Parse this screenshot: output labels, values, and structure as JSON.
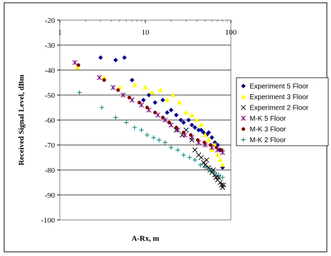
{
  "chart_data": {
    "type": "scatter",
    "title": "",
    "xlabel": "A-Rx, m",
    "ylabel": "Received Signal Level, dBm",
    "x_scale": "log",
    "xlim": [
      1,
      100
    ],
    "ylim": [
      -100,
      -20
    ],
    "x_ticks": [
      1,
      10,
      100
    ],
    "x_tick_labels": [
      "1",
      "10",
      "100"
    ],
    "y_ticks": [
      -20,
      -30,
      -40,
      -50,
      -60,
      -70,
      -80,
      -90,
      -100
    ],
    "y_tick_labels": [
      "-20",
      "-30",
      "-40",
      "-50",
      "-60",
      "-70",
      "-80",
      "-90",
      "-100"
    ],
    "x_axis_position": "top",
    "grid": "horizontal",
    "legend_position": "right",
    "series": [
      {
        "name": "Experiment 5 Floor",
        "marker": "diamond",
        "color": "#00008b",
        "points": [
          [
            3.0,
            -35
          ],
          [
            4.5,
            -36
          ],
          [
            5.7,
            -35
          ],
          [
            7.0,
            -44
          ],
          [
            9.5,
            -52
          ],
          [
            11,
            -50
          ],
          [
            13,
            -53
          ],
          [
            16,
            -52
          ],
          [
            18,
            -57
          ],
          [
            20,
            -56
          ],
          [
            23,
            -58
          ],
          [
            26,
            -60
          ],
          [
            28,
            -61
          ],
          [
            32,
            -60
          ],
          [
            35,
            -62
          ],
          [
            38,
            -63
          ],
          [
            42,
            -64
          ],
          [
            45,
            -64
          ],
          [
            48,
            -65
          ],
          [
            52,
            -66
          ],
          [
            55,
            -65
          ],
          [
            60,
            -67
          ],
          [
            65,
            -69
          ],
          [
            70,
            -70
          ],
          [
            75,
            -72
          ],
          [
            80,
            -79
          ]
        ]
      },
      {
        "name": "Experiment 3 Floor",
        "marker": "triangle",
        "color": "#ffff00",
        "points": [
          [
            1.6,
            -39
          ],
          [
            3.3,
            -43
          ],
          [
            5.0,
            -47
          ],
          [
            7.5,
            -46
          ],
          [
            10,
            -47
          ],
          [
            12,
            -49
          ],
          [
            15,
            -48
          ],
          [
            18,
            -52
          ],
          [
            21,
            -50
          ],
          [
            25,
            -53
          ],
          [
            30,
            -57
          ],
          [
            35,
            -58
          ],
          [
            40,
            -60
          ],
          [
            45,
            -62
          ],
          [
            50,
            -66
          ],
          [
            55,
            -68
          ],
          [
            60,
            -72
          ],
          [
            65,
            -70
          ],
          [
            70,
            -74
          ],
          [
            75,
            -76
          ],
          [
            80,
            -78
          ]
        ]
      },
      {
        "name": "Experiment 2 Floor",
        "marker": "x",
        "color": "#000000",
        "points": [
          [
            23,
            -64
          ],
          [
            27,
            -66
          ],
          [
            30,
            -64
          ],
          [
            35,
            -68
          ],
          [
            38,
            -72
          ],
          [
            42,
            -74
          ],
          [
            45,
            -75
          ],
          [
            48,
            -77
          ],
          [
            50,
            -78
          ],
          [
            52,
            -76
          ],
          [
            55,
            -79
          ],
          [
            57,
            -80
          ],
          [
            60,
            -81
          ],
          [
            62,
            -80
          ],
          [
            65,
            -82
          ],
          [
            67,
            -83
          ],
          [
            70,
            -84
          ],
          [
            72,
            -83
          ],
          [
            75,
            -85
          ],
          [
            78,
            -86
          ],
          [
            80,
            -87
          ],
          [
            82,
            -86
          ]
        ]
      },
      {
        "name": "M-K 5 Floor",
        "marker": "star",
        "color": "#800080",
        "points": [
          [
            1.5,
            -37
          ],
          [
            2.9,
            -43
          ],
          [
            4.2,
            -47
          ],
          [
            5.5,
            -50
          ],
          [
            7,
            -52
          ],
          [
            9,
            -54
          ],
          [
            11,
            -56
          ],
          [
            14,
            -58
          ],
          [
            17,
            -60
          ],
          [
            20,
            -62
          ],
          [
            24,
            -64
          ],
          [
            29,
            -66
          ],
          [
            35,
            -67
          ],
          [
            42,
            -69
          ],
          [
            50,
            -70
          ],
          [
            60,
            -71
          ],
          [
            70,
            -72
          ],
          [
            80,
            -73
          ]
        ]
      },
      {
        "name": "M-K 3 Floor",
        "marker": "circle",
        "color": "#800000",
        "points": [
          [
            1.65,
            -38
          ],
          [
            3.3,
            -44
          ],
          [
            4.8,
            -48
          ],
          [
            6.5,
            -51
          ],
          [
            8.5,
            -53
          ],
          [
            10.5,
            -55
          ],
          [
            13,
            -57
          ],
          [
            16,
            -59
          ],
          [
            19,
            -61
          ],
          [
            23,
            -63
          ],
          [
            28,
            -65
          ],
          [
            34,
            -66
          ],
          [
            41,
            -68
          ],
          [
            49,
            -69
          ],
          [
            58,
            -70
          ],
          [
            68,
            -71
          ],
          [
            78,
            -72
          ]
        ]
      },
      {
        "name": "M-K 2 Floor",
        "marker": "plus",
        "color": "#008080",
        "points": [
          [
            1.7,
            -49
          ],
          [
            3.1,
            -55
          ],
          [
            4.5,
            -59
          ],
          [
            6.0,
            -61
          ],
          [
            7.5,
            -63
          ],
          [
            9,
            -64
          ],
          [
            10.5,
            -66
          ],
          [
            12.5,
            -67
          ],
          [
            14.5,
            -68
          ],
          [
            17,
            -69
          ],
          [
            20,
            -71
          ],
          [
            24,
            -72
          ],
          [
            28,
            -74
          ],
          [
            33,
            -75
          ],
          [
            38,
            -76
          ],
          [
            44,
            -78
          ],
          [
            50,
            -79
          ],
          [
            57,
            -80
          ],
          [
            64,
            -81
          ],
          [
            72,
            -82
          ],
          [
            80,
            -83
          ]
        ]
      }
    ]
  }
}
